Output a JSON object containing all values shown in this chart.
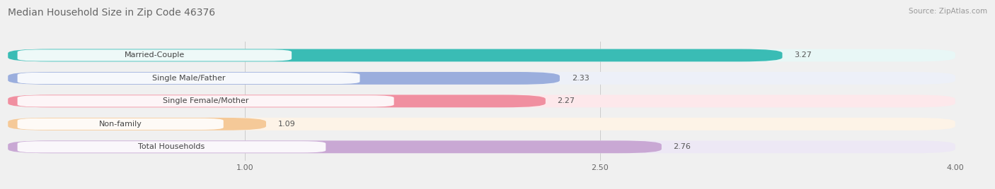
{
  "title": "Median Household Size in Zip Code 46376",
  "source": "Source: ZipAtlas.com",
  "categories": [
    "Married-Couple",
    "Single Male/Father",
    "Single Female/Mother",
    "Non-family",
    "Total Households"
  ],
  "values": [
    3.27,
    2.33,
    2.27,
    1.09,
    2.76
  ],
  "bar_colors": [
    "#3abcb5",
    "#9baedd",
    "#f08fa0",
    "#f5c998",
    "#c9a8d4"
  ],
  "bar_bg_colors": [
    "#e8f7f6",
    "#edf0f8",
    "#fde8eb",
    "#fdf3e7",
    "#ede8f5"
  ],
  "xlim_min": 0.0,
  "xlim_max": 4.0,
  "xticks": [
    1.0,
    2.5,
    4.0
  ],
  "xtick_labels": [
    "1.00",
    "2.50",
    "4.00"
  ],
  "background_color": "#f0f0f0",
  "title_fontsize": 10,
  "label_fontsize": 8,
  "value_fontsize": 8,
  "source_fontsize": 7.5
}
